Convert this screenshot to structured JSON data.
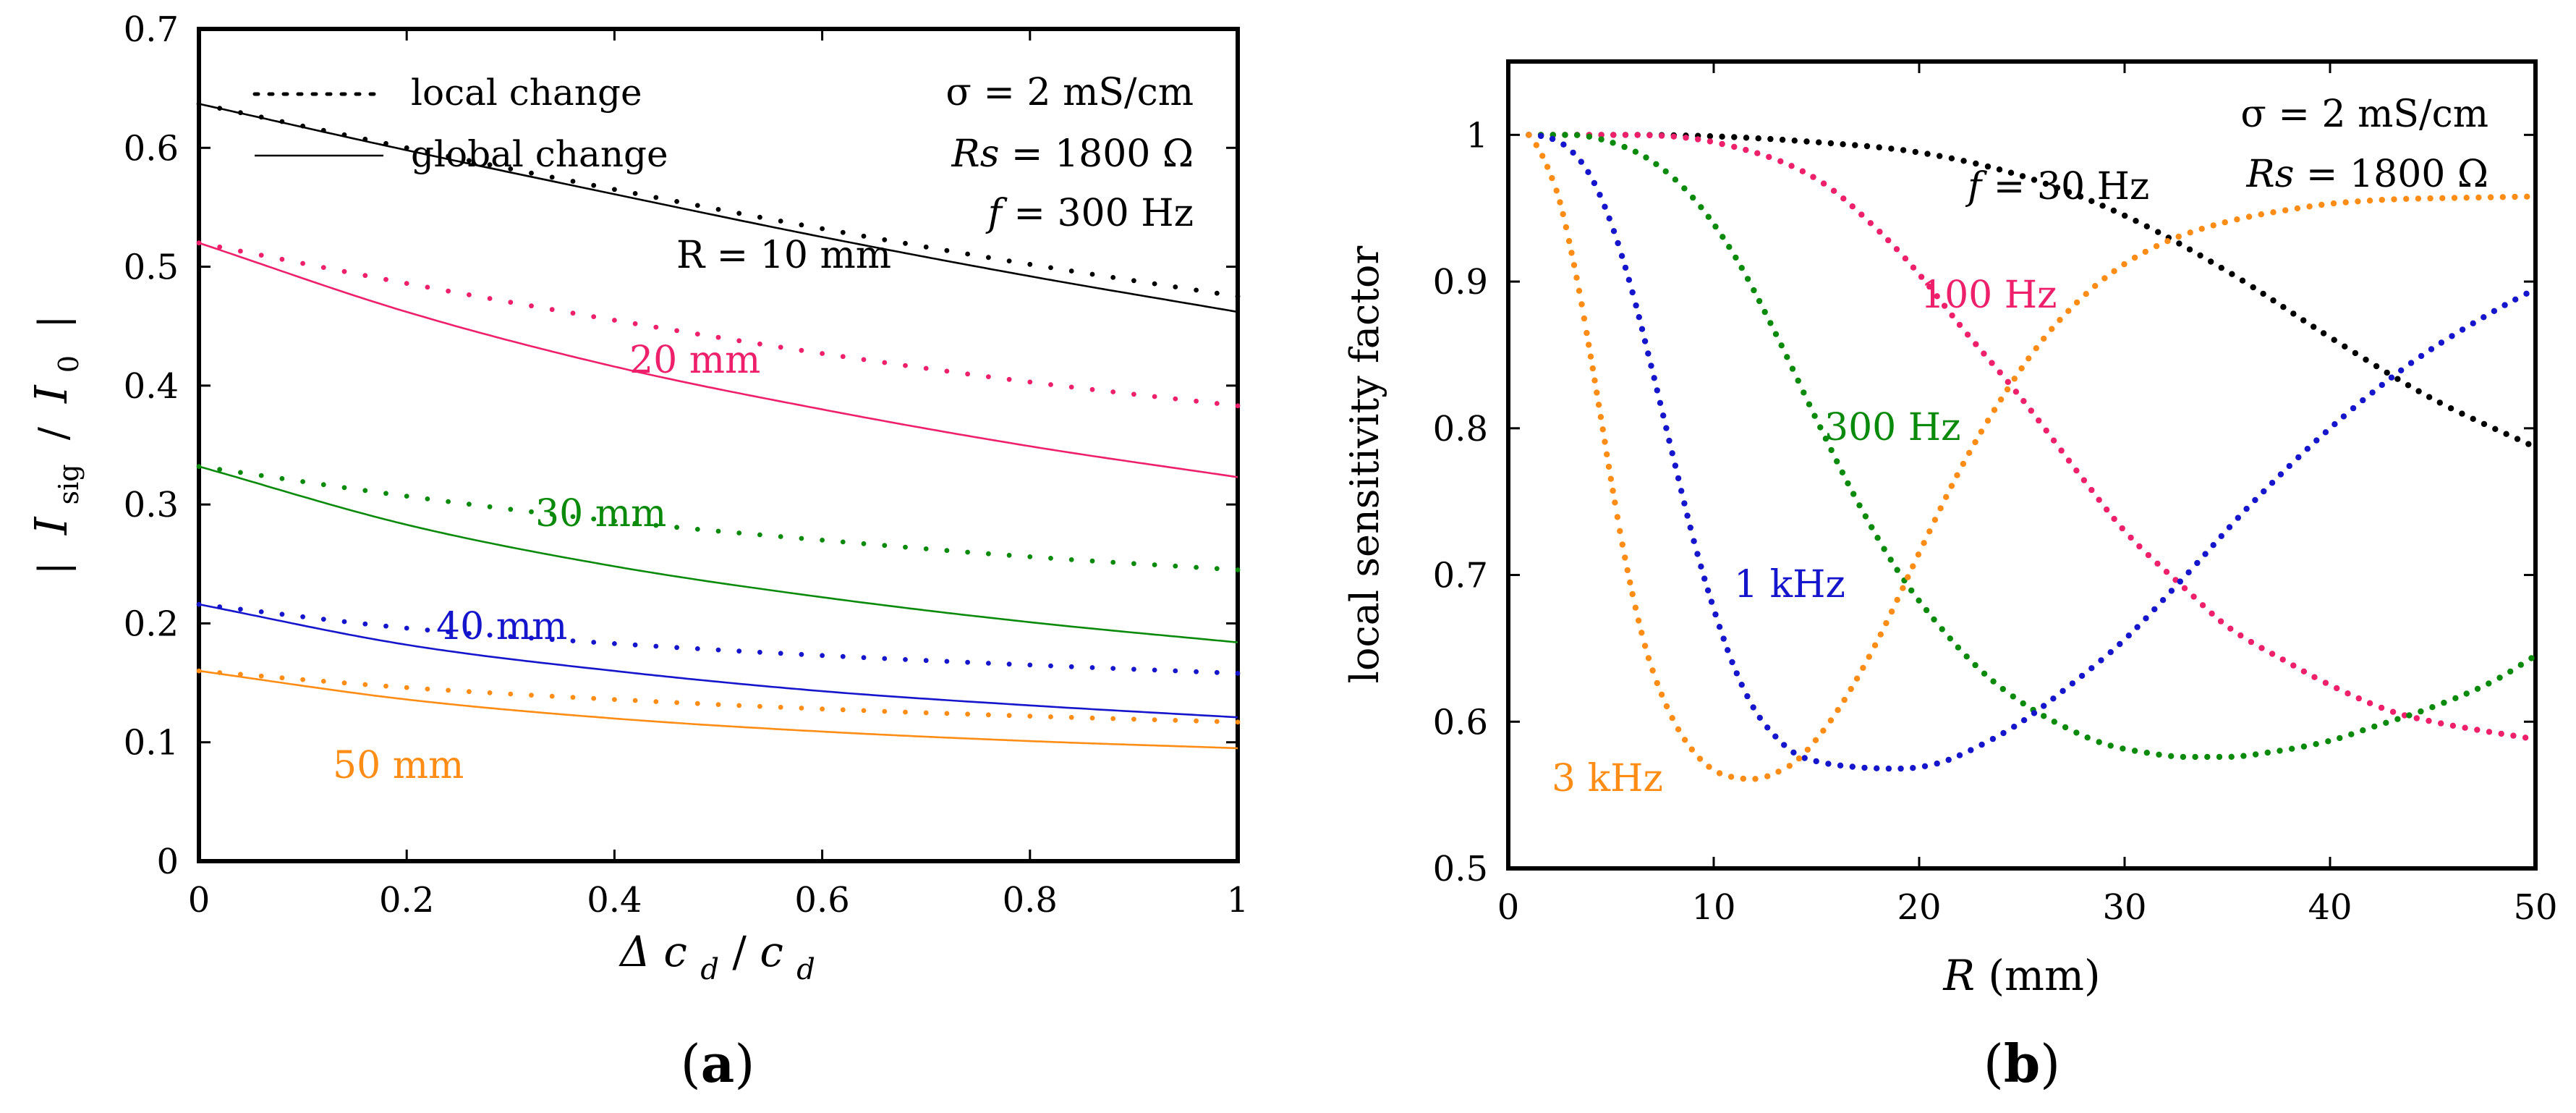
{
  "colors": {
    "black": "#000000",
    "pink": "#ee1f6b",
    "green": "#0a8a0a",
    "blue": "#1515cc",
    "orange": "#ff8c14"
  },
  "chart_data": [
    {
      "id": "a",
      "type": "line",
      "panel_label": "(a)",
      "panel_letter": "a",
      "xlim": [
        0,
        1
      ],
      "ylim": [
        0,
        0.7
      ],
      "xticks": [
        0,
        0.2,
        0.4,
        0.6,
        0.8,
        1
      ],
      "xtick_labels": [
        "0",
        "0.2",
        "0.4",
        "0.6",
        "0.8",
        "1"
      ],
      "yticks": [
        0,
        0.1,
        0.2,
        0.3,
        0.4,
        0.5,
        0.6,
        0.7
      ],
      "ytick_labels": [
        "0",
        "0.1",
        "0.2",
        "0.3",
        "0.4",
        "0.5",
        "0.6",
        "0.7"
      ],
      "xlabel": "Δc_d / c_d",
      "xlabel_parts": {
        "delta": "Δ",
        "c": "c",
        "d": "d",
        "slash": " / "
      },
      "ylabel": "| I_sig / I_0 |",
      "ylabel_parts": {
        "bar": "|",
        "I": "I",
        "sig": "sig",
        "slash": "/",
        "zero": "0"
      },
      "legend": [
        {
          "label": "local change",
          "style": "dotted"
        },
        {
          "label": "global change",
          "style": "solid"
        }
      ],
      "info": {
        "sigma": "σ = 2 mS/cm",
        "rs_var": "Rs",
        "rs_val": " = 1800 Ω",
        "f_var": "f",
        "f_val": " = 300 Hz"
      },
      "series": [
        {
          "name": "R = 10 mm",
          "label": "R = 10 mm",
          "color": "black",
          "x": [
            0,
            0.2,
            0.4,
            0.6,
            0.8,
            1
          ],
          "local": [
            0.637,
            0.6,
            0.565,
            0.532,
            0.502,
            0.475
          ],
          "global": [
            0.637,
            0.598,
            0.561,
            0.525,
            0.492,
            0.462
          ]
        },
        {
          "name": "R = 20 mm",
          "label": "20 mm",
          "color": "pink",
          "x": [
            0,
            0.2,
            0.4,
            0.6,
            0.8,
            1
          ],
          "local": [
            0.52,
            0.486,
            0.455,
            0.427,
            0.403,
            0.383
          ],
          "global": [
            0.52,
            0.462,
            0.416,
            0.38,
            0.349,
            0.323
          ]
        },
        {
          "name": "R = 30 mm",
          "label": "30 mm",
          "color": "green",
          "x": [
            0,
            0.2,
            0.4,
            0.6,
            0.8,
            1
          ],
          "local": [
            0.332,
            0.307,
            0.286,
            0.27,
            0.256,
            0.245
          ],
          "global": [
            0.332,
            0.283,
            0.248,
            0.222,
            0.201,
            0.184
          ]
        },
        {
          "name": "R = 40 mm",
          "label": "40 mm",
          "color": "blue",
          "x": [
            0,
            0.2,
            0.4,
            0.6,
            0.8,
            1
          ],
          "local": [
            0.216,
            0.196,
            0.183,
            0.173,
            0.165,
            0.158
          ],
          "global": [
            0.216,
            0.182,
            0.16,
            0.143,
            0.131,
            0.121
          ]
        },
        {
          "name": "R = 50 mm",
          "label": "50 mm",
          "color": "orange",
          "x": [
            0,
            0.2,
            0.4,
            0.6,
            0.8,
            1
          ],
          "local": [
            0.16,
            0.146,
            0.136,
            0.128,
            0.122,
            0.117
          ],
          "global": [
            0.16,
            0.136,
            0.12,
            0.109,
            0.101,
            0.095
          ]
        }
      ]
    },
    {
      "id": "b",
      "type": "scatter",
      "panel_label": "(b)",
      "panel_letter": "b",
      "xlim": [
        0,
        50
      ],
      "ylim": [
        0.5,
        1.05
      ],
      "xticks": [
        0,
        10,
        20,
        30,
        40,
        50
      ],
      "xtick_labels": [
        "0",
        "10",
        "20",
        "30",
        "40",
        "50"
      ],
      "yticks": [
        0.5,
        0.6,
        0.7,
        0.8,
        0.9,
        1
      ],
      "ytick_labels": [
        "0.5",
        "0.6",
        "0.7",
        "0.8",
        "0.9",
        "1"
      ],
      "xlabel": "R (mm)",
      "xlabel_parts": {
        "var": "R",
        "unit": " (mm)"
      },
      "ylabel": "local sensitivity factor",
      "info": {
        "sigma": "σ = 2 mS/cm",
        "rs_var": "Rs",
        "rs_val": " = 1800 Ω"
      },
      "series": [
        {
          "name": "f = 30 Hz",
          "color": "black",
          "label_var": "f",
          "label_text": " = 30 Hz",
          "x": [
            1,
            5,
            10,
            15,
            20,
            25,
            30,
            35,
            40,
            45,
            50
          ],
          "y": [
            1.0,
            1.0,
            0.999,
            0.995,
            0.988,
            0.972,
            0.945,
            0.907,
            0.862,
            0.82,
            0.787
          ]
        },
        {
          "name": "100 Hz",
          "color": "pink",
          "label_text": "100 Hz",
          "x": [
            1,
            5,
            10,
            15,
            18,
            20,
            22,
            25,
            28,
            30,
            33,
            35,
            38,
            40,
            43,
            45,
            50
          ],
          "y": [
            1.0,
            1.0,
            0.995,
            0.97,
            0.935,
            0.905,
            0.87,
            0.82,
            0.765,
            0.73,
            0.69,
            0.665,
            0.64,
            0.625,
            0.607,
            0.6,
            0.588
          ]
        },
        {
          "name": "300 Hz",
          "color": "green",
          "label_text": "300 Hz",
          "x": [
            1,
            3,
            5,
            7,
            9,
            11,
            13,
            15,
            17,
            19,
            21,
            23,
            25,
            27,
            29,
            31,
            33,
            35,
            37,
            40,
            42,
            45,
            48,
            50
          ],
          "y": [
            1.0,
            1.0,
            0.995,
            0.982,
            0.957,
            0.918,
            0.865,
            0.806,
            0.75,
            0.702,
            0.665,
            0.635,
            0.613,
            0.597,
            0.585,
            0.579,
            0.576,
            0.576,
            0.579,
            0.587,
            0.596,
            0.61,
            0.628,
            0.645
          ]
        },
        {
          "name": "1 kHz",
          "color": "blue",
          "label_text": "1 kHz",
          "x": [
            1,
            2,
            3,
            4,
            5,
            6,
            7,
            8,
            9,
            10,
            11,
            12,
            13,
            14,
            15,
            17,
            19,
            21,
            23,
            25,
            27,
            30,
            33,
            36,
            40,
            44,
            48,
            50
          ],
          "y": [
            1.0,
            0.998,
            0.99,
            0.972,
            0.94,
            0.895,
            0.84,
            0.782,
            0.725,
            0.677,
            0.637,
            0.608,
            0.59,
            0.578,
            0.573,
            0.569,
            0.568,
            0.572,
            0.584,
            0.6,
            0.621,
            0.656,
            0.7,
            0.746,
            0.8,
            0.845,
            0.88,
            0.895
          ]
        },
        {
          "name": "3 kHz",
          "color": "orange",
          "label_text": "3 kHz",
          "x": [
            1,
            1.5,
            2,
            2.5,
            3,
            3.5,
            4,
            4.5,
            5,
            5.5,
            6,
            6.5,
            7,
            8,
            9,
            10,
            11,
            12,
            13,
            14,
            15,
            16,
            17,
            18,
            19,
            20,
            22,
            24,
            26,
            28,
            30,
            32,
            34,
            36,
            38,
            40,
            43,
            46,
            50
          ],
          "y": [
            1.0,
            0.99,
            0.975,
            0.955,
            0.925,
            0.89,
            0.85,
            0.808,
            0.765,
            0.725,
            0.69,
            0.66,
            0.636,
            0.602,
            0.58,
            0.567,
            0.562,
            0.561,
            0.565,
            0.573,
            0.588,
            0.607,
            0.63,
            0.656,
            0.685,
            0.715,
            0.772,
            0.82,
            0.86,
            0.89,
            0.912,
            0.927,
            0.937,
            0.944,
            0.949,
            0.953,
            0.956,
            0.957,
            0.958
          ]
        }
      ]
    }
  ]
}
